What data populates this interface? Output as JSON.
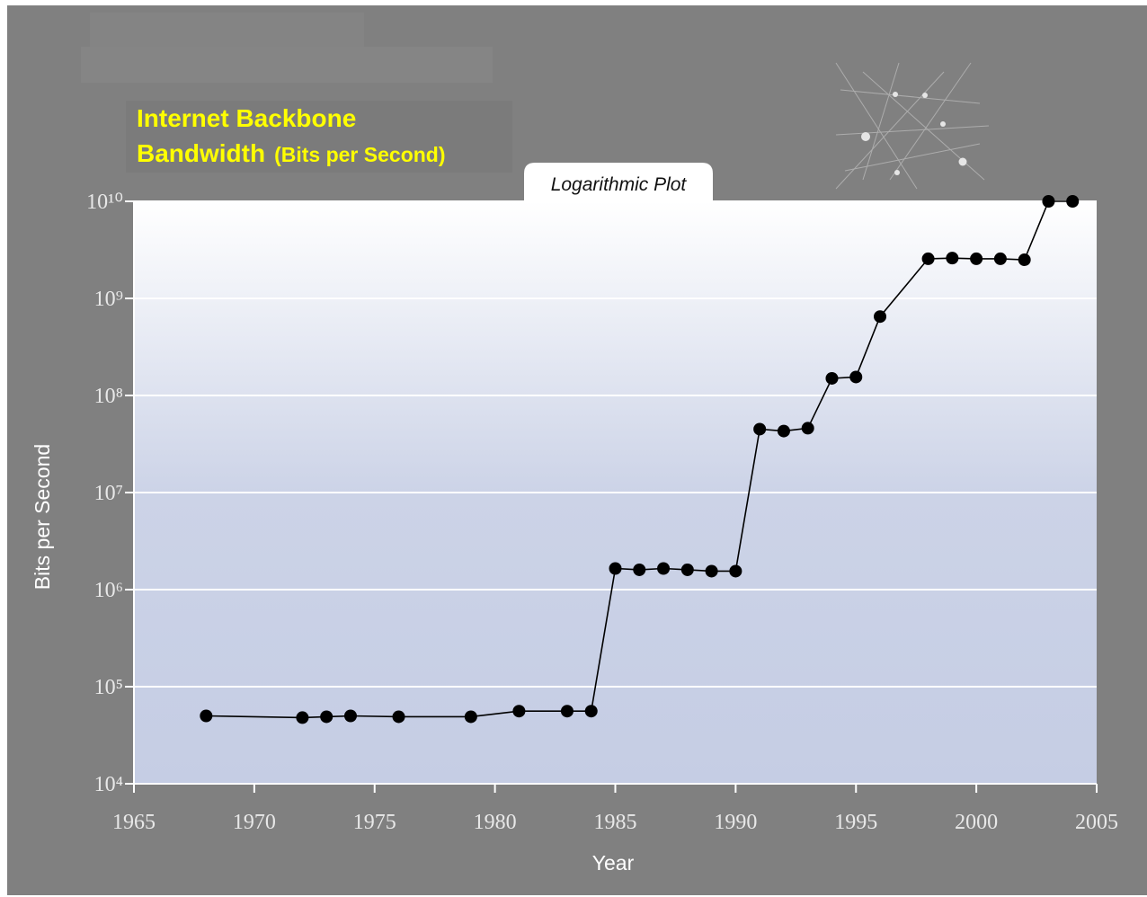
{
  "chart_data": {
    "type": "line",
    "log_y": true,
    "grid": true,
    "color": "#000000",
    "title": [
      "Internet Backbone",
      "Bandwidth"
    ],
    "title_note": "(Bits per Second)",
    "annotations": [
      "Logarithmic Plot"
    ],
    "xlabel": "Year",
    "ylabel": "Bits per Second",
    "x": [
      1968,
      1972,
      1973,
      1974,
      1976,
      1979,
      1981,
      1983,
      1984,
      1985,
      1986,
      1987,
      1988,
      1989,
      1990,
      1991,
      1992,
      1993,
      1994,
      1995,
      1996,
      1998,
      1999,
      2000,
      2001,
      2002,
      2003,
      2004
    ],
    "values": [
      50000,
      48000,
      49000,
      50000,
      49000,
      49000,
      56000,
      56000,
      56000,
      1650000,
      1600000,
      1650000,
      1600000,
      1550000,
      1550000,
      45000000,
      43000000,
      46000000,
      150000000,
      155000000,
      650000000,
      2560000000,
      2600000000,
      2560000000,
      2560000000,
      2500000000,
      10000000000,
      10000000000
    ],
    "xlim": [
      1965,
      2005
    ],
    "xticks": [
      1965,
      1970,
      1975,
      1980,
      1985,
      1990,
      1995,
      2000,
      2005
    ],
    "ylim": [
      10000,
      10000000000
    ],
    "yticks": [
      {
        "value": 10000,
        "label": "10⁴"
      },
      {
        "value": 100000,
        "label": "10⁵"
      },
      {
        "value": 1000000,
        "label": "10⁶"
      },
      {
        "value": 10000000,
        "label": "10⁷"
      },
      {
        "value": 100000000,
        "label": "10⁸"
      },
      {
        "value": 1000000000,
        "label": "10⁹"
      },
      {
        "value": 10000000000,
        "label": "10¹⁰"
      }
    ]
  }
}
